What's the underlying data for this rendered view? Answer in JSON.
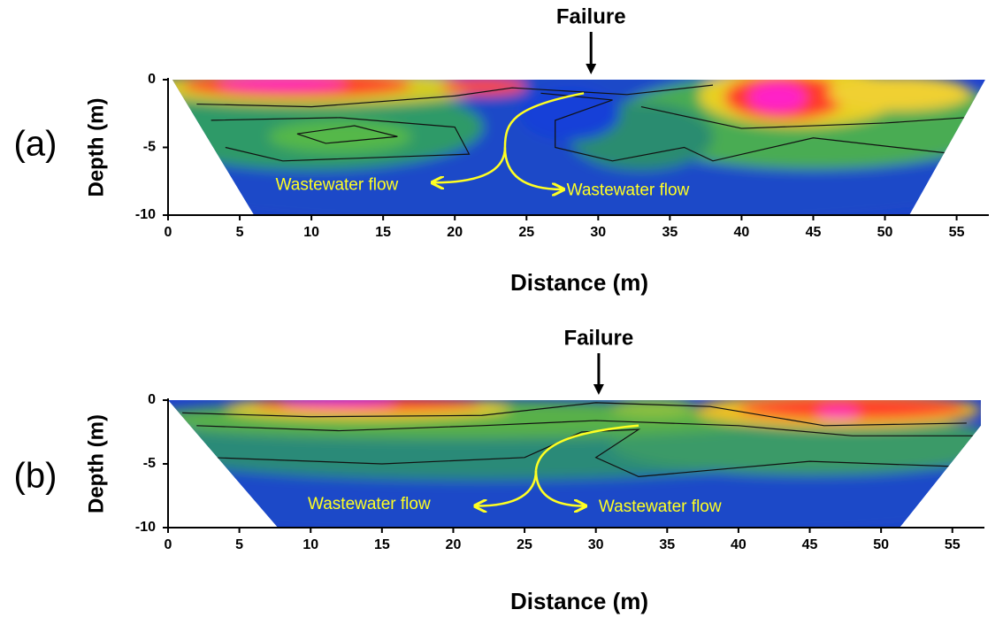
{
  "chart_data": [
    {
      "type": "contour",
      "panel_label": "(a)",
      "annotations": [
        "Failure",
        "Wastewater flow",
        "Wastewater flow"
      ],
      "xlabel": "Distance (m)",
      "ylabel": "Depth (m)",
      "xlim": [
        0,
        57
      ],
      "ylim": [
        -10,
        0
      ],
      "xticks": [
        0,
        5,
        10,
        15,
        20,
        25,
        30,
        35,
        40,
        45,
        50,
        55
      ],
      "yticks": [
        -10,
        -5,
        0
      ]
    },
    {
      "type": "contour",
      "panel_label": "(b)",
      "annotations": [
        "Failure",
        "Wastewater flow",
        "Wastewater flow"
      ],
      "xlabel": "Distance (m)",
      "ylabel": "Depth (m)",
      "xlim": [
        0,
        57
      ],
      "ylim": [
        -10,
        0
      ],
      "xticks": [
        0,
        5,
        10,
        15,
        20,
        25,
        30,
        35,
        40,
        45,
        50,
        55
      ],
      "yticks": [
        -10,
        -5,
        0
      ]
    }
  ]
}
